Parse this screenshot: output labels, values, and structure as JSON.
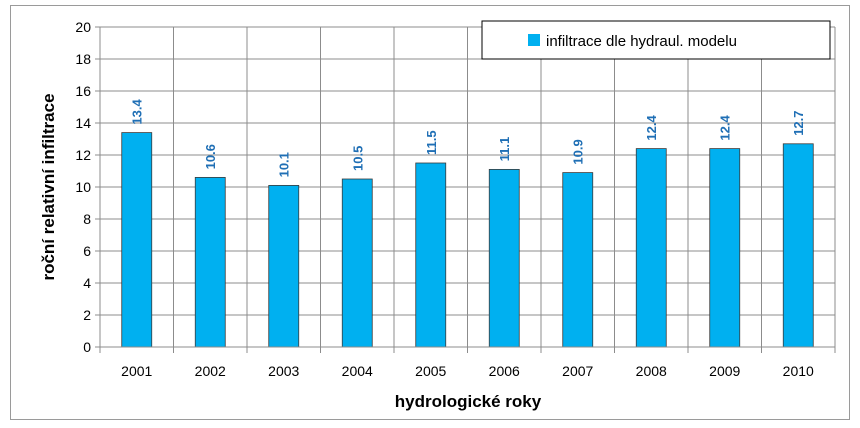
{
  "chart_data": {
    "type": "bar",
    "categories": [
      "2001",
      "2002",
      "2003",
      "2004",
      "2005",
      "2006",
      "2007",
      "2008",
      "2009",
      "2010"
    ],
    "series": [
      {
        "name": "infiltrace dle hydraul. modelu",
        "values": [
          13.4,
          10.6,
          10.1,
          10.5,
          11.5,
          11.1,
          10.9,
          12.4,
          12.4,
          12.7
        ],
        "color": "#00B0F0"
      }
    ],
    "xlabel": "hydrologické roky",
    "ylabel": "roční relativní infiltrace",
    "ylim": [
      0,
      20
    ],
    "yticks": [
      0,
      2,
      4,
      6,
      8,
      10,
      12,
      14,
      16,
      18,
      20
    ],
    "grid": true,
    "legend_position": "top-right",
    "data_labels": true,
    "label_color": "#1F6FB5"
  }
}
